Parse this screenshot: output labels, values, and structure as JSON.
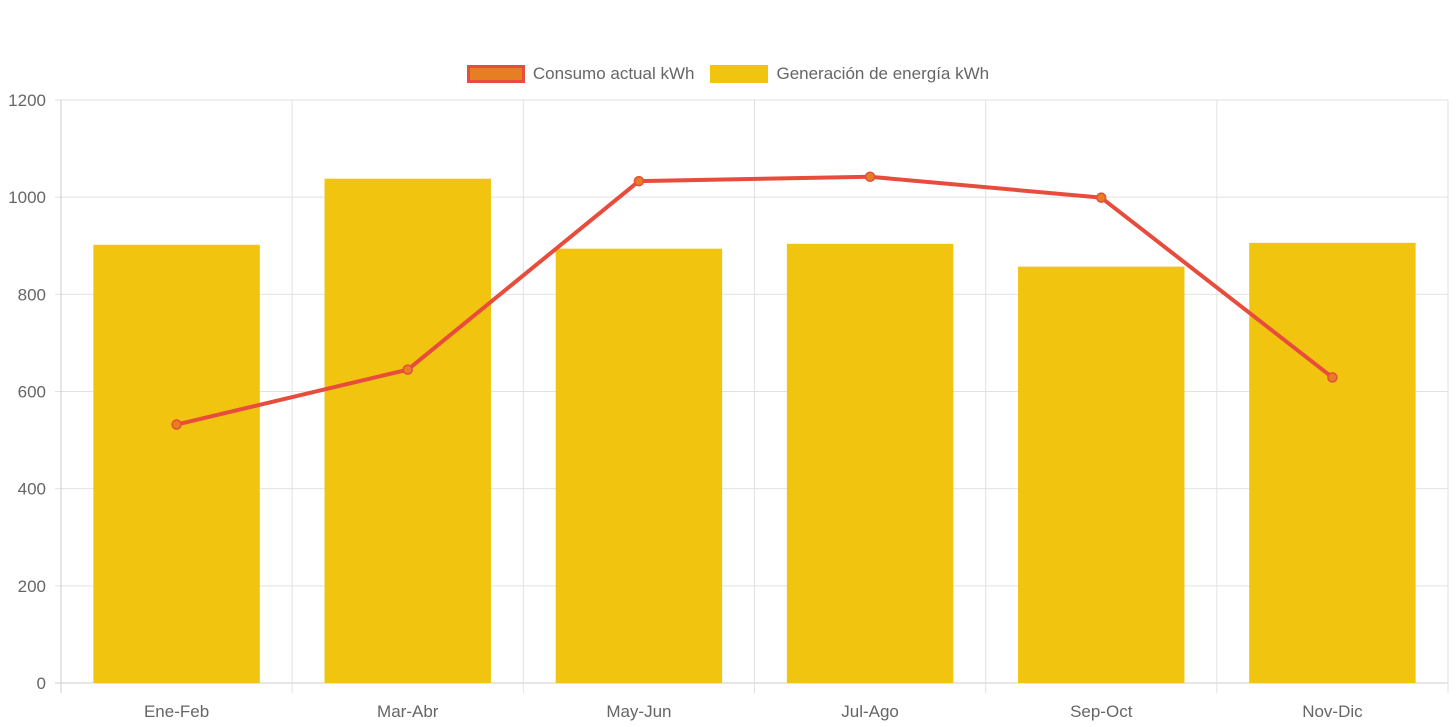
{
  "chart_data": {
    "type": "bar",
    "title": "",
    "xlabel": "",
    "ylabel": "",
    "ylim": [
      0,
      1200
    ],
    "yticks": [
      0,
      200,
      400,
      600,
      800,
      1000,
      1200
    ],
    "grid": true,
    "legend_position": "top-center",
    "categories": [
      "Ene-Feb",
      "Mar-Abr",
      "May-Jun",
      "Jul-Ago",
      "Sep-Oct",
      "Nov-Dic"
    ],
    "series": [
      {
        "name": "Consumo actual kWh",
        "type": "line",
        "color": "#e74c3c",
        "point_color": "#e67e22",
        "values": [
          532,
          645,
          1033,
          1042,
          999,
          629
        ]
      },
      {
        "name": "Generación de energía kWh",
        "type": "bar",
        "color": "#f1c40f",
        "values": [
          902,
          1038,
          894,
          904,
          857,
          906
        ]
      }
    ]
  }
}
